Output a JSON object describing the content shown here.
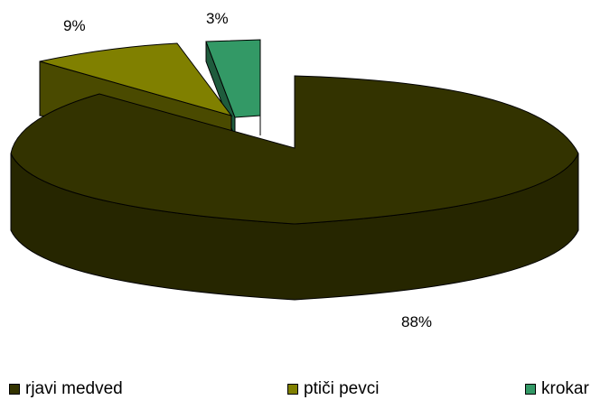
{
  "chart_data": {
    "type": "pie",
    "title": "",
    "categories": [
      "rjavi medved",
      "ptiči pevci",
      "krokar"
    ],
    "values": [
      88,
      9,
      3
    ],
    "data_labels": [
      "88%",
      "9%",
      "3%"
    ],
    "colors": [
      "#333300",
      "#808000",
      "#339966"
    ],
    "exploded": true,
    "three_d": true,
    "legend_position": "bottom"
  }
}
